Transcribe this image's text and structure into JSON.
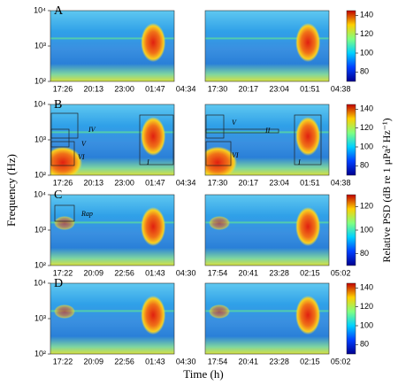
{
  "chart_data": [
    {
      "type": "spectrogram",
      "title": "A",
      "categories": [
        "17:26",
        "20:13",
        "23:00",
        "01:47",
        "04:34"
      ],
      "ylim": [
        100,
        10000
      ],
      "yticks": [
        {
          "value": 100,
          "label": "10²"
        },
        {
          "value": 1000,
          "label": "10³"
        },
        {
          "value": 10000,
          "label": "10⁴"
        }
      ],
      "log_y": true
    },
    {
      "type": "spectrogram",
      "categories": [
        "17:30",
        "20:17",
        "23:04",
        "01:51",
        "04:38"
      ],
      "ylim": [
        100,
        10000
      ],
      "log_y": true
    },
    {
      "type": "spectrogram",
      "title": "B",
      "categories": [
        "17:26",
        "20:13",
        "23:00",
        "01:47",
        "04:34"
      ],
      "ylim": [
        100,
        10000
      ],
      "yticks": [
        {
          "value": 100,
          "label": "10²"
        },
        {
          "value": 1000,
          "label": "10³"
        },
        {
          "value": 10000,
          "label": "10⁴"
        }
      ],
      "log_y": true,
      "annotations": [
        "IV",
        "V",
        "VI",
        "I"
      ]
    },
    {
      "type": "spectrogram",
      "categories": [
        "17:30",
        "20:17",
        "23:04",
        "01:51",
        "04:38"
      ],
      "ylim": [
        100,
        10000
      ],
      "log_y": true,
      "annotations": [
        "V",
        "II",
        "VI",
        "I"
      ]
    },
    {
      "type": "spectrogram",
      "title": "C",
      "categories": [
        "17:22",
        "20:09",
        "22:56",
        "01:43",
        "04:30"
      ],
      "ylim": [
        100,
        10000
      ],
      "yticks": [
        {
          "value": 100,
          "label": "10²"
        },
        {
          "value": 1000,
          "label": "10³"
        },
        {
          "value": 10000,
          "label": "10⁴"
        }
      ],
      "log_y": true,
      "annotations": [
        "Rap"
      ]
    },
    {
      "type": "spectrogram",
      "categories": [
        "17:54",
        "20:41",
        "23:28",
        "02:15",
        "05:02"
      ],
      "ylim": [
        100,
        10000
      ],
      "log_y": true
    },
    {
      "type": "spectrogram",
      "title": "D",
      "categories": [
        "17:22",
        "20:09",
        "22:56",
        "01:43",
        "04:30"
      ],
      "ylim": [
        100,
        10000
      ],
      "yticks": [
        {
          "value": 100,
          "label": "10²"
        },
        {
          "value": 1000,
          "label": "10³"
        },
        {
          "value": 10000,
          "label": "10⁴"
        }
      ],
      "log_y": true
    },
    {
      "type": "spectrogram",
      "categories": [
        "17:54",
        "20:41",
        "23:28",
        "02:15",
        "05:02"
      ],
      "ylim": [
        100,
        10000
      ],
      "log_y": true
    }
  ],
  "figure": {
    "ylabel": "Frequency (Hz)",
    "xlabel": "Time (h)",
    "colorbar_label": "Relative PSD (dB re 1 μPa² Hz⁻¹)",
    "colorbars": [
      {
        "lim": [
          70,
          145
        ],
        "ticks": [
          80,
          100,
          120,
          140
        ]
      },
      {
        "lim": [
          70,
          145
        ],
        "ticks": [
          80,
          100,
          120,
          140
        ]
      },
      {
        "lim": [
          70,
          130
        ],
        "ticks": [
          80,
          100,
          120
        ]
      },
      {
        "lim": [
          70,
          145
        ],
        "ticks": [
          80,
          100,
          120,
          140
        ]
      }
    ]
  }
}
